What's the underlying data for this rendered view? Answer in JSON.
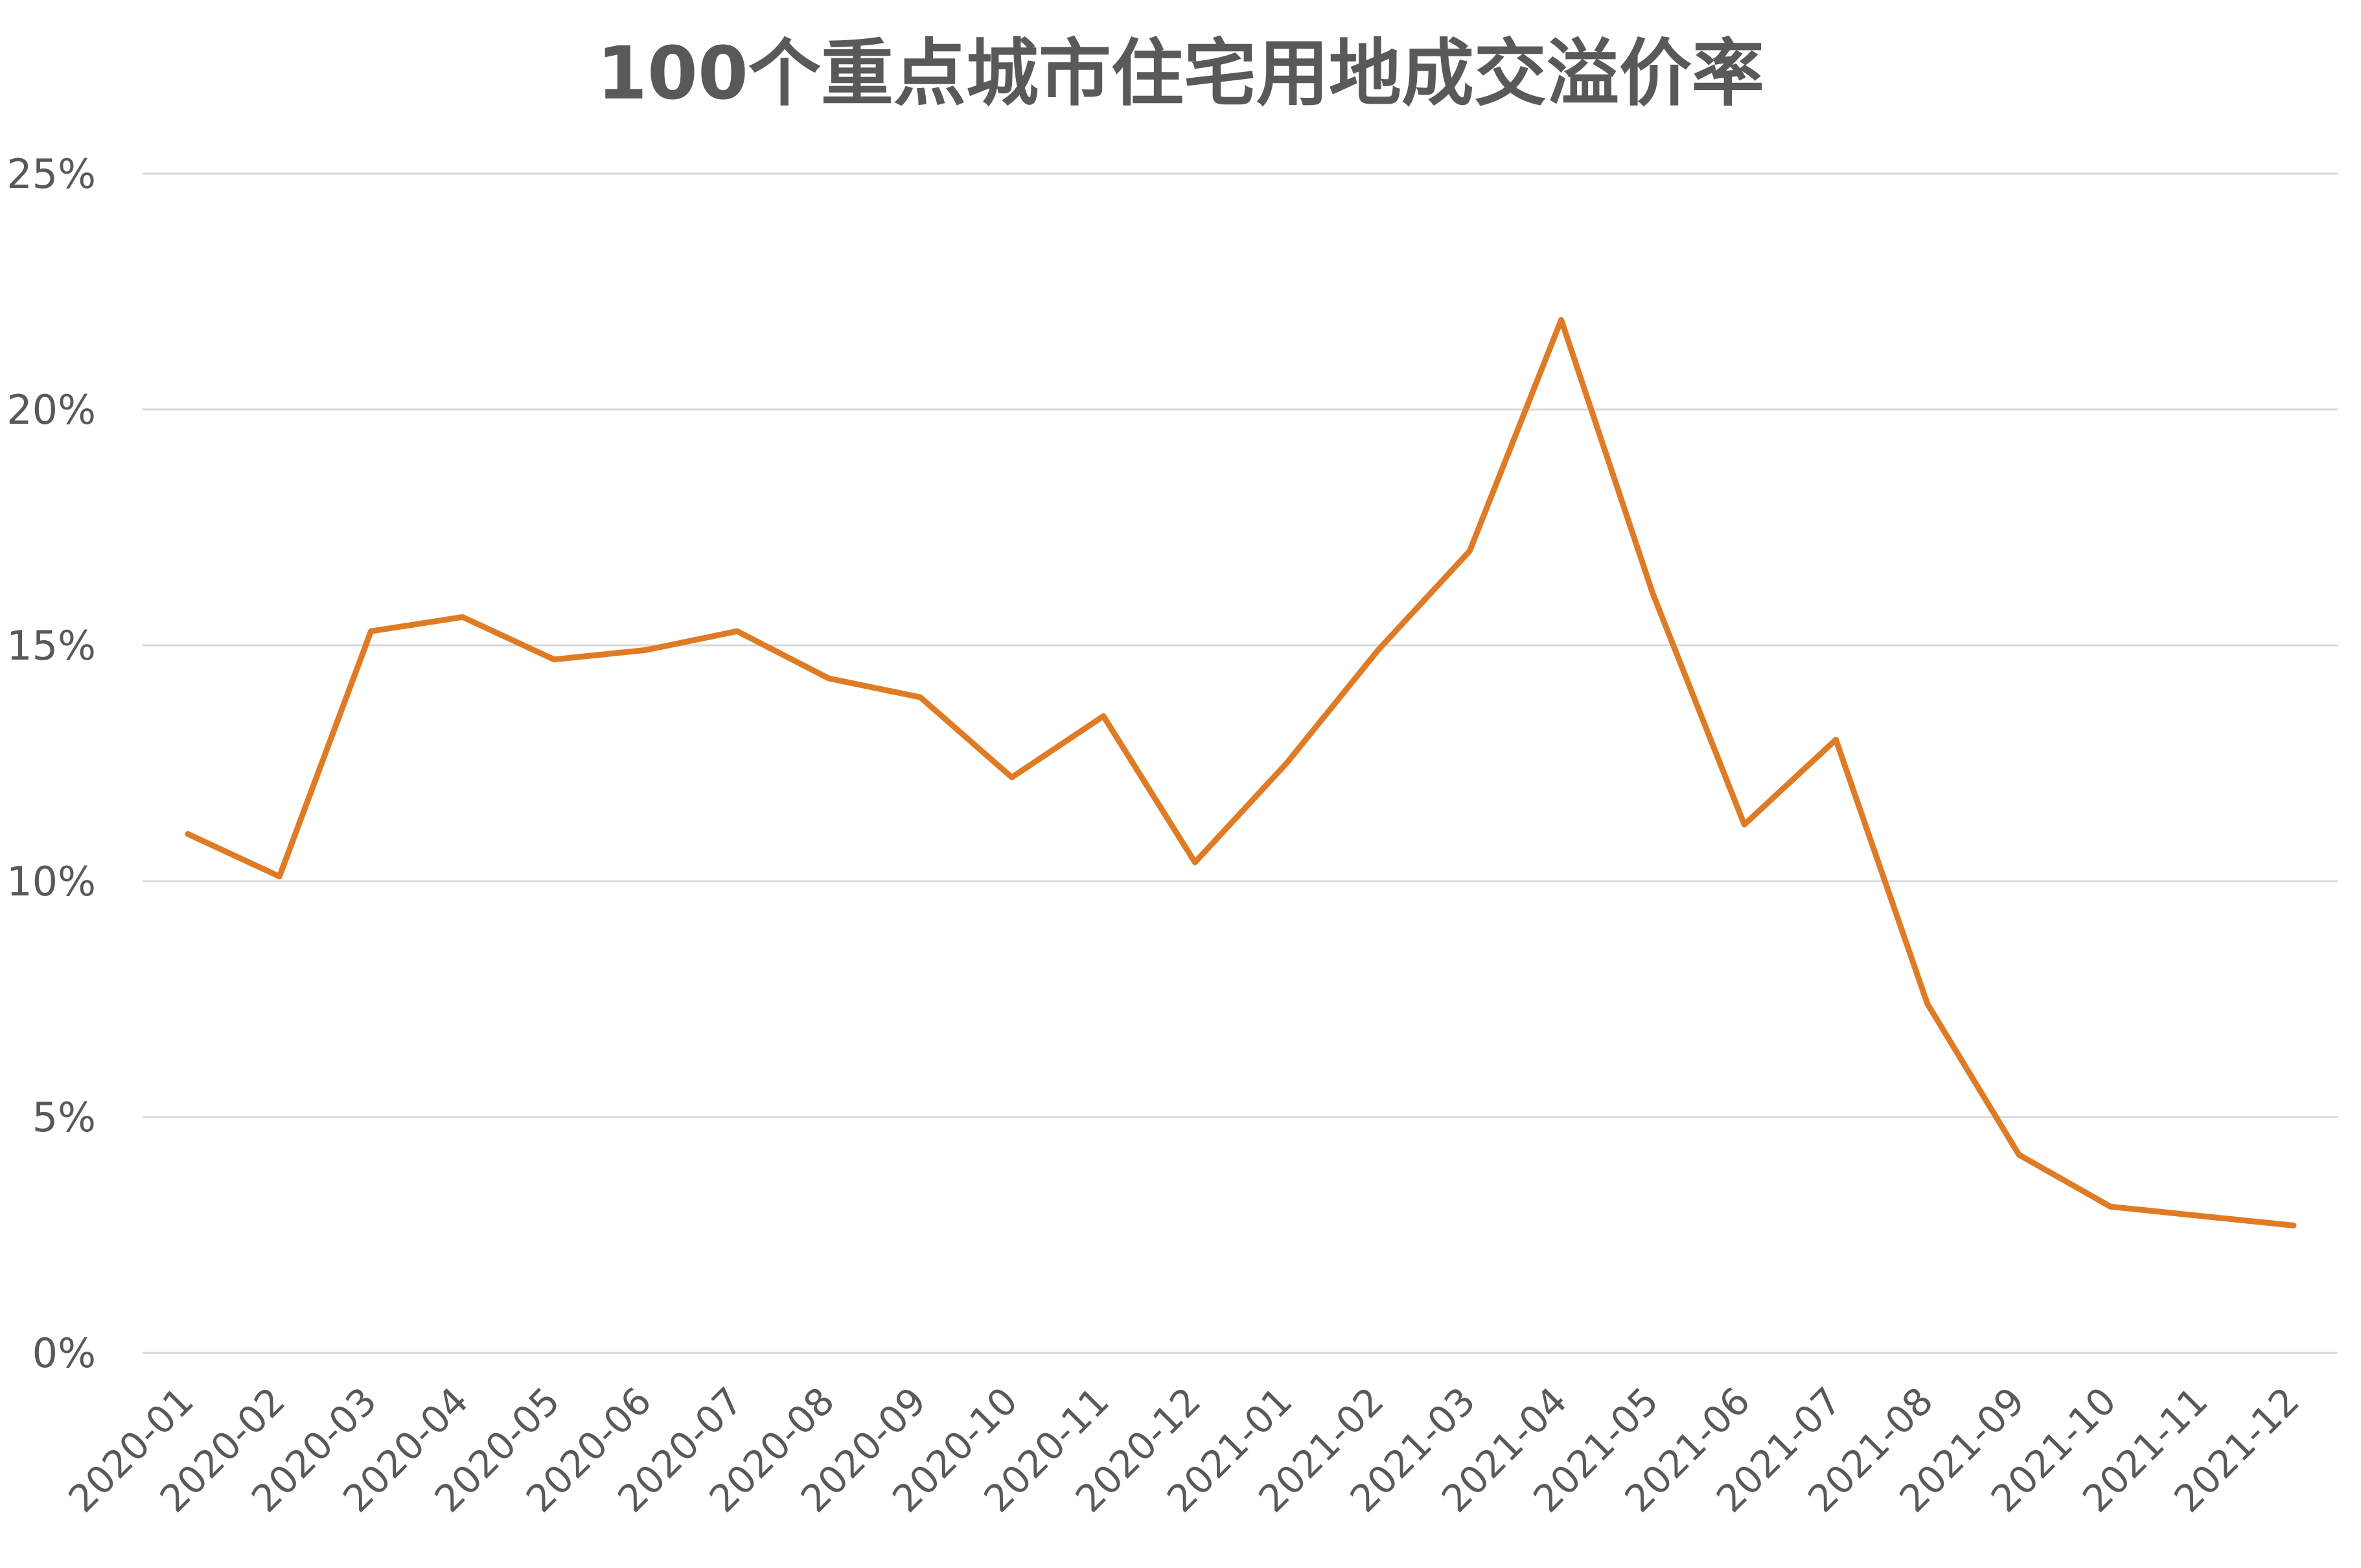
{
  "chart_data": {
    "type": "line",
    "title": "100个重点城市住宅用地成交溢价率",
    "xlabel": "",
    "ylabel": "",
    "ylim": [
      0,
      25
    ],
    "y_ticks": [
      0,
      5,
      10,
      15,
      20,
      25
    ],
    "y_tick_labels": [
      "0%",
      "5%",
      "10%",
      "15%",
      "20%",
      "25%"
    ],
    "grid": true,
    "legend": "none",
    "categories": [
      "2020-01",
      "2020-02",
      "2020-03",
      "2020-04",
      "2020-05",
      "2020-06",
      "2020-07",
      "2020-08",
      "2020-09",
      "2020-10",
      "2020-11",
      "2020-12",
      "2021-01",
      "2021-02",
      "2021-03",
      "2021-04",
      "2021-05",
      "2021-06",
      "2021-07",
      "2021-08",
      "2021-09",
      "2021-10",
      "2021-11",
      "2021-12"
    ],
    "series": [
      {
        "color": "#E07B25",
        "values": [
          11.0,
          10.1,
          15.3,
          15.6,
          14.7,
          14.9,
          15.3,
          14.3,
          13.9,
          12.2,
          13.5,
          10.4,
          12.5,
          14.9,
          17.0,
          21.9,
          16.1,
          11.2,
          13.0,
          7.4,
          4.2,
          3.1,
          2.9,
          2.7
        ]
      }
    ]
  }
}
